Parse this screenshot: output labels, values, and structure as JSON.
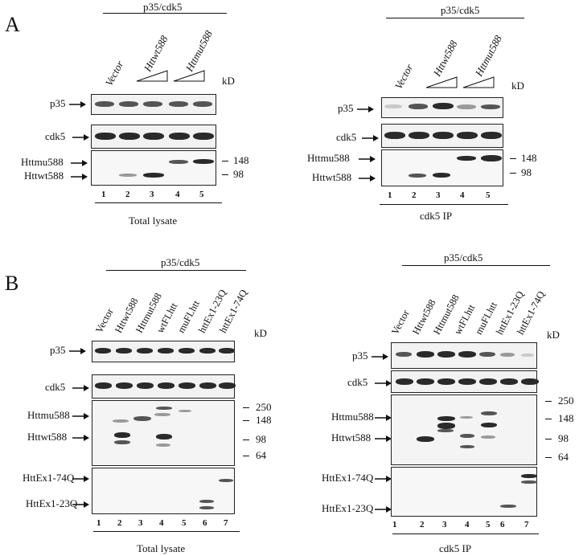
{
  "panelA": {
    "letter": "A",
    "header": "p35/cdk5",
    "kd_label": "kD",
    "left": {
      "lanes_top": [
        "Vector",
        "Httwt588",
        "Httmut588"
      ],
      "rows": [
        "p35",
        "cdk5",
        "Httmu588",
        "Httwt588"
      ],
      "markers": [
        "148",
        "98"
      ],
      "lane_numbers": [
        "1",
        "2",
        "3",
        "4",
        "5"
      ],
      "caption": "Total lysate"
    },
    "right": {
      "lanes_top": [
        "Vector",
        "Httwt588",
        "Httmut588"
      ],
      "rows": [
        "p35",
        "cdk5",
        "Httmu588",
        "Httwt588"
      ],
      "markers": [
        "148",
        "98"
      ],
      "lane_numbers": [
        "1",
        "2",
        "3",
        "4",
        "5"
      ],
      "caption": "cdk5 IP"
    }
  },
  "panelB": {
    "letter": "B",
    "header": "p35/cdk5",
    "kd_label": "kD",
    "lanes_top": [
      "Vector",
      "Httwt588",
      "Httmut588",
      "wtFLhtt",
      "muFLhtt",
      "httEx1-23Q",
      "httEx1-74Q"
    ],
    "left": {
      "rows": [
        "p35",
        "cdk5",
        "Httmu588",
        "Httwt588",
        "HttEx1-74Q",
        "HttEx1-23Q"
      ],
      "markers": [
        "250",
        "148",
        "98",
        "64"
      ],
      "lane_numbers": [
        "1",
        "2",
        "3",
        "4",
        "5",
        "6",
        "7"
      ],
      "caption": "Total lysate"
    },
    "right": {
      "rows": [
        "p35",
        "cdk5",
        "Httmu588",
        "Httwt588",
        "HttEx1-74Q",
        "HttEx1-23Q"
      ],
      "markers": [
        "250",
        "148",
        "98",
        "64"
      ],
      "lane_numbers": [
        "1",
        "2",
        "3",
        "4",
        "5",
        "6",
        "7"
      ],
      "caption": "cdk5 IP"
    }
  }
}
